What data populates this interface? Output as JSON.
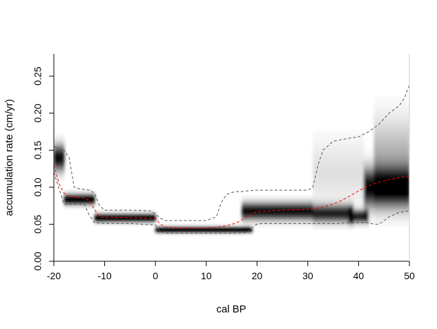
{
  "chart_data": {
    "type": "heatmap",
    "xlabel": "cal BP",
    "ylabel": "accumulation rate (cm/yr)",
    "xlim": [
      -20,
      50
    ],
    "ylim": [
      0,
      0.28
    ],
    "x_ticks": [
      "-20",
      "-10",
      "0",
      "10",
      "20",
      "30",
      "40",
      "50"
    ],
    "y_ticks": [
      "0.00",
      "0.05",
      "0.10",
      "0.15",
      "0.20",
      "0.25"
    ],
    "grid": false,
    "segments": [
      {
        "x": [
          -20,
          -18
        ],
        "rate": 0.14,
        "spread": 0.012,
        "weight": 0.95
      },
      {
        "x": [
          -18,
          -12
        ],
        "rate": 0.084,
        "spread": 0.005,
        "weight": 1.0
      },
      {
        "x": [
          -12,
          0
        ],
        "rate": 0.059,
        "spread": 0.004,
        "weight": 1.0
      },
      {
        "x": [
          0,
          19
        ],
        "rate": 0.043,
        "spread": 0.003,
        "weight": 1.0
      },
      {
        "x": [
          17,
          31
        ],
        "rate": 0.068,
        "spread": 0.008,
        "weight": 0.95
      },
      {
        "x": [
          31,
          39
        ],
        "rate": 0.065,
        "spread": 0.008,
        "weight": 0.85
      },
      {
        "x": [
          38,
          42
        ],
        "rate": 0.061,
        "spread": 0.006,
        "weight": 0.85
      },
      {
        "x": [
          41,
          50
        ],
        "rate": 0.1,
        "spread": 0.018,
        "weight": 1.0
      },
      {
        "x": [
          43,
          50
        ],
        "rate": 0.14,
        "spread": 0.035,
        "weight": 0.3
      },
      {
        "x": [
          31,
          41
        ],
        "rate": 0.12,
        "spread": 0.03,
        "weight": 0.12
      }
    ],
    "series": [
      {
        "style": "dashed",
        "color": "#ff0000",
        "x": [
          -20,
          -19,
          -18,
          -17,
          -16,
          -15,
          -14,
          -13,
          -12,
          -11,
          -10,
          -5,
          0,
          1,
          2,
          5,
          10,
          12,
          14,
          16,
          17,
          18,
          19,
          20,
          25,
          30,
          33,
          36,
          38,
          40,
          42,
          44,
          46,
          48,
          50
        ],
        "y": [
          0.13,
          0.105,
          0.092,
          0.088,
          0.087,
          0.086,
          0.085,
          0.082,
          0.07,
          0.06,
          0.059,
          0.059,
          0.058,
          0.05,
          0.046,
          0.045,
          0.045,
          0.046,
          0.048,
          0.052,
          0.056,
          0.06,
          0.064,
          0.067,
          0.069,
          0.07,
          0.073,
          0.08,
          0.087,
          0.095,
          0.102,
          0.107,
          0.11,
          0.113,
          0.115
        ]
      },
      {
        "style": "dashed",
        "color": "#555555",
        "x": [
          -20,
          -18,
          -17,
          -16,
          -15,
          -14,
          -13,
          -12,
          -11,
          -10,
          -5,
          -1,
          0,
          1,
          2,
          5,
          10,
          12,
          13,
          14,
          15,
          16,
          17,
          18,
          20,
          25,
          30,
          31,
          32,
          33,
          35,
          38,
          40,
          42,
          44,
          46,
          48,
          49,
          50
        ],
        "y": [
          0.155,
          0.15,
          0.14,
          0.1,
          0.098,
          0.097,
          0.096,
          0.092,
          0.075,
          0.069,
          0.069,
          0.068,
          0.064,
          0.058,
          0.055,
          0.055,
          0.055,
          0.06,
          0.08,
          0.09,
          0.093,
          0.094,
          0.094,
          0.095,
          0.096,
          0.096,
          0.096,
          0.1,
          0.13,
          0.15,
          0.162,
          0.166,
          0.168,
          0.175,
          0.185,
          0.2,
          0.21,
          0.22,
          0.238
        ]
      },
      {
        "style": "dashed",
        "color": "#555555",
        "x": [
          -20,
          -18,
          -16,
          -14,
          -13,
          -12,
          -10,
          -5,
          0,
          1,
          2,
          5,
          10,
          15,
          18,
          19,
          20,
          21,
          25,
          30,
          36,
          38,
          40,
          42,
          43,
          44,
          45,
          46,
          48,
          50
        ],
        "y": [
          0.12,
          0.077,
          0.077,
          0.077,
          0.062,
          0.052,
          0.051,
          0.051,
          0.049,
          0.04,
          0.038,
          0.038,
          0.038,
          0.038,
          0.039,
          0.045,
          0.05,
          0.051,
          0.051,
          0.051,
          0.051,
          0.052,
          0.052,
          0.052,
          0.05,
          0.05,
          0.055,
          0.06,
          0.066,
          0.068
        ]
      }
    ]
  }
}
